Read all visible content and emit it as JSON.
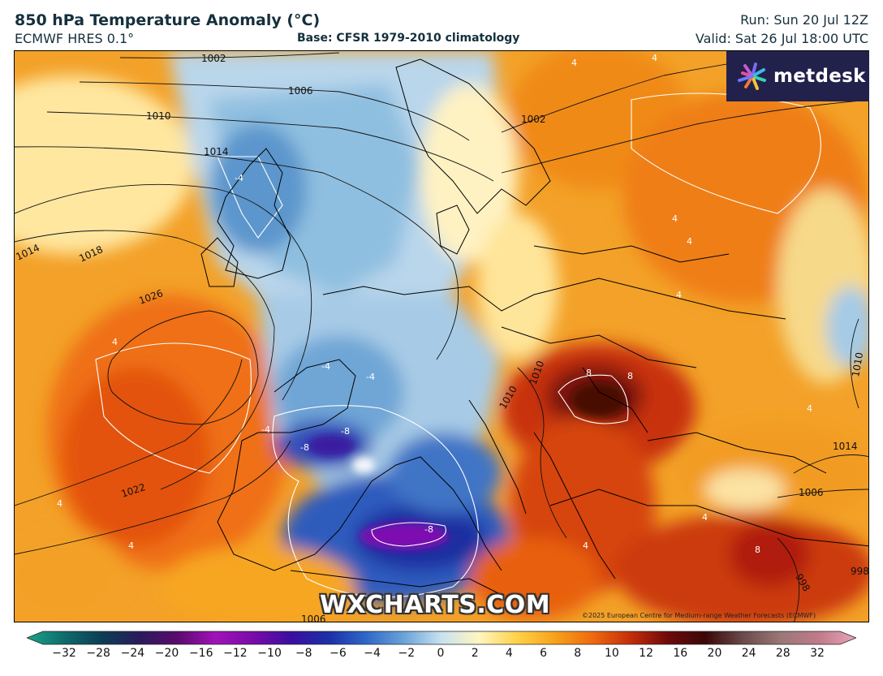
{
  "header": {
    "title": "850 hPa Temperature Anomaly (°C)",
    "model": "ECMWF HRES 0.1°",
    "base": "Base: CFSR 1979-2010 climatology",
    "run": "Run: Sun 20 Jul 12Z",
    "valid": "Valid: Sat 26 Jul 18:00 UTC"
  },
  "logo": {
    "text": "metdesk",
    "background": "#22214b"
  },
  "watermark": "WXCHARTS.COM",
  "copyright": "©2025 European Centre for Medium-range Weather Forecasts (ECMWF)",
  "isobar_labels": [
    "1002",
    "1006",
    "1010",
    "1014",
    "1014",
    "1018",
    "1026",
    "1022",
    "1002",
    "1010",
    "1010",
    "1006",
    "1006",
    "1010",
    "1014",
    "998",
    "998"
  ],
  "anomaly_labels": [
    "4",
    "4",
    "4",
    "-4",
    "-4",
    "-4",
    "-4",
    "-8",
    "-8",
    "-8",
    "8",
    "8",
    "4",
    "4",
    "4",
    "4",
    "4",
    "4",
    "4",
    "4",
    "8"
  ],
  "colorbar": {
    "ticks": [
      "−32",
      "−28",
      "−24",
      "−20",
      "−16",
      "−12",
      "−10",
      "−8",
      "−6",
      "−4",
      "−2",
      "0",
      "2",
      "4",
      "6",
      "8",
      "10",
      "12",
      "16",
      "20",
      "24",
      "28",
      "32"
    ],
    "colors": [
      "#1aa489",
      "#0f6b6b",
      "#0c3d55",
      "#2a1b5a",
      "#5a0a6e",
      "#a012b8",
      "#7a0aa8",
      "#3a0ea0",
      "#1c2fa8",
      "#2f67c8",
      "#6aa3d8",
      "#c8e2f0",
      "#fff6c0",
      "#ffd24a",
      "#f7a21a",
      "#ee6a10",
      "#c52e0a",
      "#6e0a0a",
      "#3b0808",
      "#6a4a4a",
      "#9a7878",
      "#c07a8a",
      "#e8a4b8"
    ]
  }
}
